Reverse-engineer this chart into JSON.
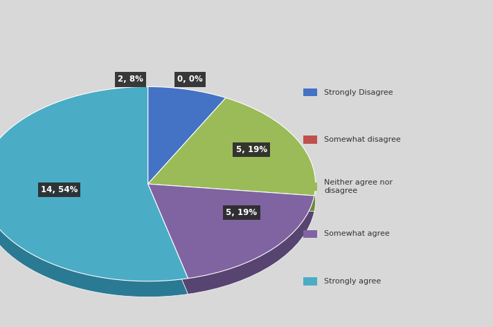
{
  "labels": [
    "Strongly Disagree",
    "Somewhat disagree",
    "Neither agree nor\ndisagree",
    "Somewhat agree",
    "Strongly agree"
  ],
  "values": [
    2,
    0,
    5,
    5,
    14
  ],
  "colors": [
    "#4472C4",
    "#C0504D",
    "#9BBB59",
    "#8064A2",
    "#4BACC6"
  ],
  "shadow_colors": [
    "#2E4F8A",
    "#8B3A38",
    "#6B8A3A",
    "#574470",
    "#2B7A94"
  ],
  "label_texts": [
    "2, 8%",
    "0, 0%",
    "5, 19%",
    "5, 19%",
    "14, 54%"
  ],
  "label_bg_color": "#333333",
  "label_text_color": "#FFFFFF",
  "legend_labels": [
    "Strongly Disagree",
    "Somewhat disagree",
    "Neither agree nor\ndisagree",
    "Somewhat agree",
    "Strongly agree"
  ],
  "legend_colors": [
    "#4472C4",
    "#C0504D",
    "#9BBB59",
    "#8064A2",
    "#4BACC6"
  ],
  "bg_color": "#D8D8D8",
  "header_color": "#787878",
  "startangle": 90,
  "figsize": [
    7.12,
    4.73
  ],
  "dpi": 100
}
